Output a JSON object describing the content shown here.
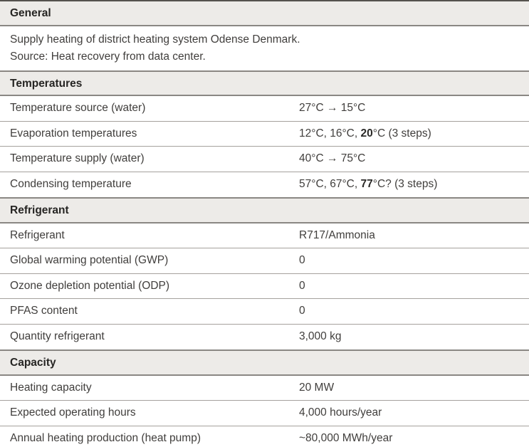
{
  "colors": {
    "header_bg": "#edebe8",
    "header_border": "#8a8783",
    "top_border": "#55524e",
    "row_border": "#a5a19d",
    "text": "#403e3c",
    "title_text": "#262523",
    "bold_text": "#2b2a28"
  },
  "table": {
    "sections": [
      {
        "title": "General",
        "description_lines": [
          "Supply heating of district heating system Odense Denmark.",
          "Source: Heat recovery from data center."
        ],
        "rows": []
      },
      {
        "title": "Temperatures",
        "description_lines": [],
        "rows": [
          {
            "label": "Temperature source (water)",
            "parts": [
              {
                "text": "27°C → 15°C",
                "bold": false
              }
            ]
          },
          {
            "label": "Evaporation temperatures",
            "parts": [
              {
                "text": "12°C, 16°C, ",
                "bold": false
              },
              {
                "text": "20",
                "bold": true
              },
              {
                "text": "°C (3 steps)",
                "bold": false
              }
            ]
          },
          {
            "label": "Temperature supply (water)",
            "parts": [
              {
                "text": "40°C → 75°C",
                "bold": false
              }
            ]
          },
          {
            "label": "Condensing temperature",
            "parts": [
              {
                "text": "57°C, 67°C, ",
                "bold": false
              },
              {
                "text": "77",
                "bold": true
              },
              {
                "text": "°C? (3 steps)",
                "bold": false
              }
            ]
          }
        ]
      },
      {
        "title": "Refrigerant",
        "description_lines": [],
        "rows": [
          {
            "label": "Refrigerant",
            "parts": [
              {
                "text": "R717/Ammonia",
                "bold": false
              }
            ]
          },
          {
            "label": "Global warming potential (GWP)",
            "parts": [
              {
                "text": "0",
                "bold": false
              }
            ]
          },
          {
            "label": "Ozone depletion potential (ODP)",
            "parts": [
              {
                "text": "0",
                "bold": false
              }
            ]
          },
          {
            "label": "PFAS content",
            "parts": [
              {
                "text": "0",
                "bold": false
              }
            ]
          },
          {
            "label": "Quantity refrigerant",
            "parts": [
              {
                "text": "3,000 kg",
                "bold": false
              }
            ]
          }
        ]
      },
      {
        "title": "Capacity",
        "description_lines": [],
        "rows": [
          {
            "label": "Heating capacity",
            "parts": [
              {
                "text": "20 MW",
                "bold": false
              }
            ]
          },
          {
            "label": "Expected operating hours",
            "parts": [
              {
                "text": "4,000 hours/year",
                "bold": false
              }
            ]
          },
          {
            "label": "Annual heating production (heat pump)",
            "parts": [
              {
                "text": "~80,000 MWh/year",
                "bold": false
              }
            ]
          }
        ]
      }
    ]
  }
}
